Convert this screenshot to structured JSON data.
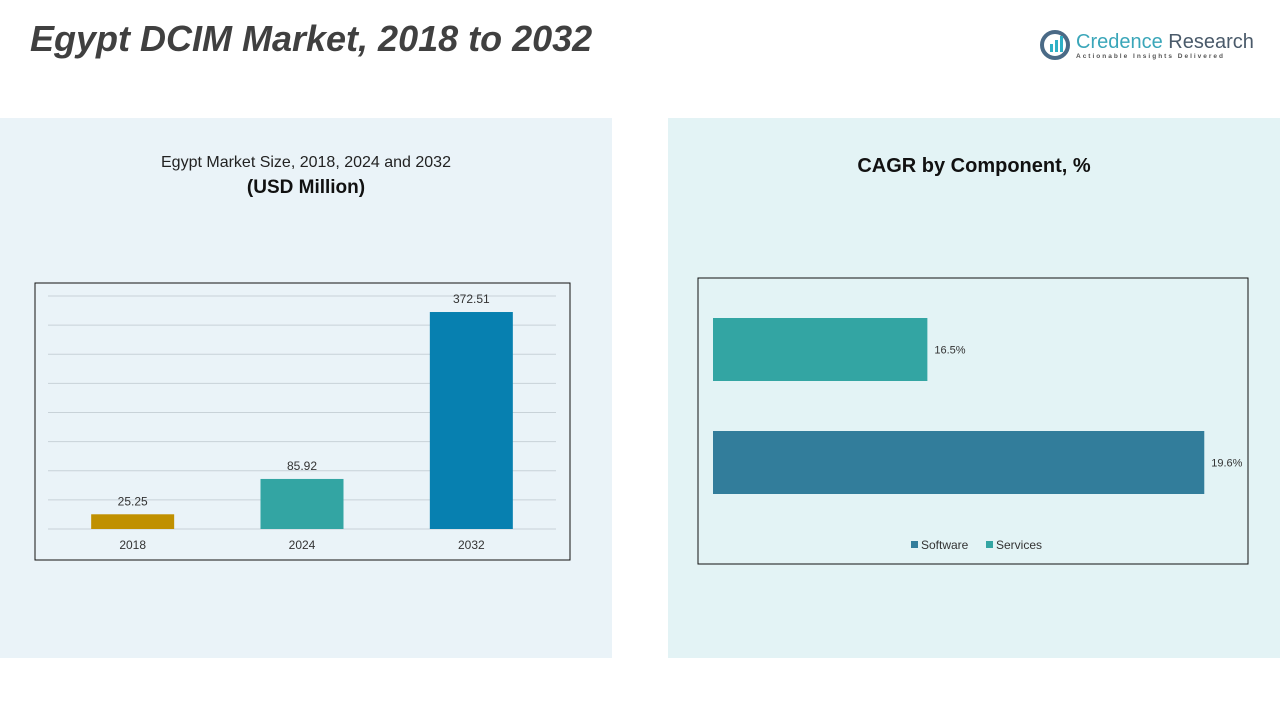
{
  "title": "Egypt DCIM Market, 2018 to 2032",
  "logo": {
    "name_part1": "Credence",
    "name_part2": "Research",
    "tagline": "Actionable Insights Delivered"
  },
  "chart_data": [
    {
      "type": "bar",
      "title": "Egypt Market Size, 2018, 2024 and 2032",
      "subtitle": "(USD Million)",
      "categories": [
        "2018",
        "2024",
        "2032"
      ],
      "values": [
        25.25,
        85.92,
        372.51
      ],
      "data_labels": [
        "25.25",
        "85.92",
        "372.51"
      ],
      "colors": [
        "#c09000",
        "#33a5a3",
        "#0780b0"
      ],
      "ylim": [
        0,
        400
      ],
      "grid": true
    },
    {
      "type": "bar",
      "orientation": "horizontal",
      "title": "CAGR by Component, %",
      "categories": [
        "Services",
        "Software"
      ],
      "values": [
        16.5,
        19.6
      ],
      "data_labels": [
        "16.5%",
        "19.6%"
      ],
      "colors": [
        "#33a5a3",
        "#327d9b"
      ],
      "xlim": [
        14.1,
        20
      ],
      "legend": {
        "position": "bottom",
        "entries": [
          "Software",
          "Services"
        ]
      }
    }
  ]
}
